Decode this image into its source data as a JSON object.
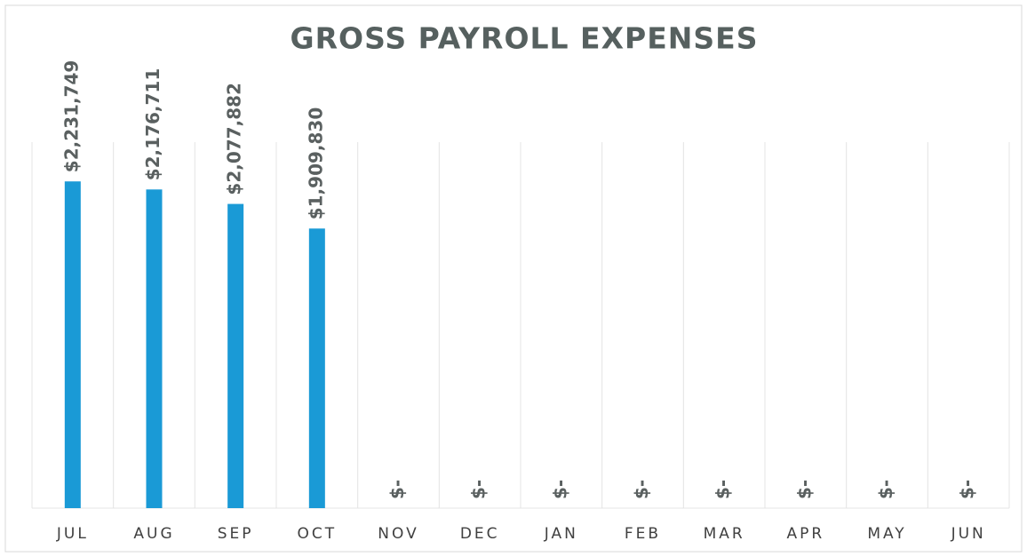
{
  "chart_data": {
    "type": "bar",
    "title": "GROSS PAYROLL EXPENSES",
    "categories": [
      "JUL",
      "AUG",
      "SEP",
      "OCT",
      "NOV",
      "DEC",
      "JAN",
      "FEB",
      "MAR",
      "APR",
      "MAY",
      "JUN"
    ],
    "values": [
      2231749,
      2176711,
      2077882,
      1909830,
      0,
      0,
      0,
      0,
      0,
      0,
      0,
      0
    ],
    "value_labels": [
      "$2,231,749",
      "$2,176,711",
      "$2,077,882",
      "$1,909,830",
      "$-",
      "$-",
      "$-",
      "$-",
      "$-",
      "$-",
      "$-",
      "$-"
    ],
    "color": "#1a9ad6",
    "ylim": [
      0,
      2500000
    ]
  }
}
